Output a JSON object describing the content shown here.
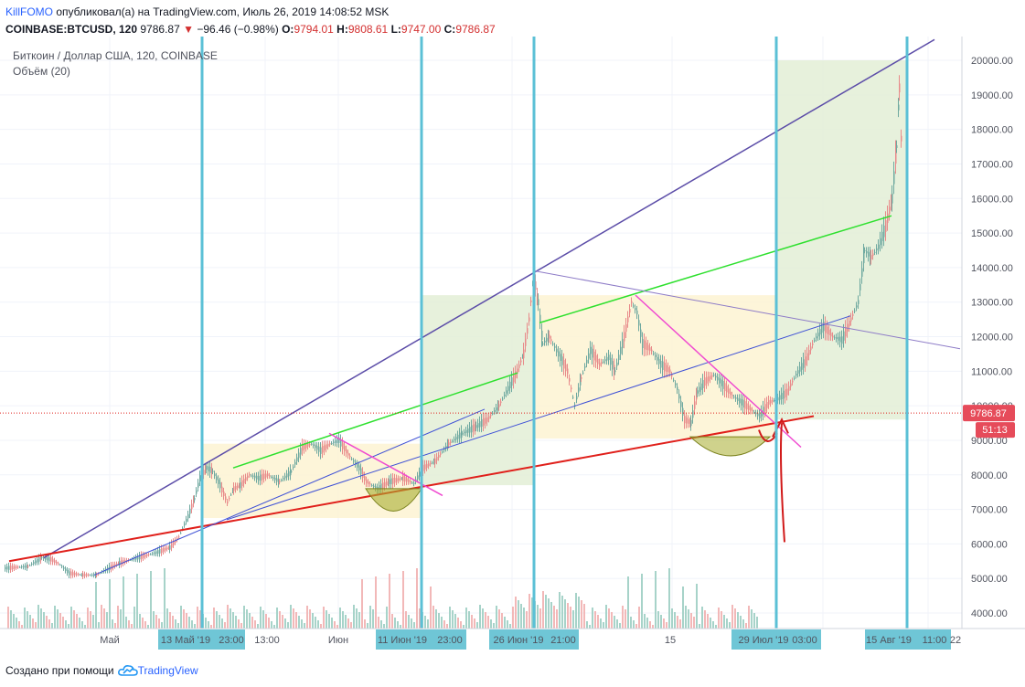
{
  "header": {
    "author": "KillFOMO",
    "published_text": "опубликовал(а) на TradingView.com, Июль 26, 2019 14:08:52 MSK",
    "symbol": "COINBASE:BTCUSD, 120",
    "last": "9786.87",
    "change_arrow": "▼",
    "change": "−96.46 (−0.98%)",
    "o_label": "O:",
    "o": "9794.01",
    "h_label": "H:",
    "h": "9808.61",
    "l_label": "L:",
    "l": "9747.00",
    "c_label": "C:",
    "c": "9786.87"
  },
  "legend": {
    "title": "Биткоин / Доллар США, 120, COINBASE",
    "volume": "Объём (20)"
  },
  "footer": {
    "created_with": "Создано при помощи",
    "brand": "TradingView",
    "logo_icon": "tradingview-cloud-icon"
  },
  "chart_data": {
    "type": "candlestick",
    "title": "Биткоин / Доллар США, 120, COINBASE",
    "volume_label": "Объём (20)",
    "ylim": [
      3500,
      20600
    ],
    "y_ticks": [
      4000,
      5000,
      6000,
      7000,
      8000,
      9000,
      10000,
      11000,
      12000,
      13000,
      14000,
      15000,
      16000,
      17000,
      18000,
      19000,
      20000
    ],
    "y_tick_labels": [
      "4000.00",
      "5000.00",
      "6000.00",
      "7000.00",
      "8000.00",
      "9000.00",
      "10000.00",
      "11000.00",
      "12000.00",
      "13000.00",
      "14000.00",
      "15000.00",
      "16000.00",
      "17000.00",
      "18000.00",
      "19000.00",
      "20000.00"
    ],
    "x_ticks": [
      {
        "label": "Май",
        "highlight": false
      },
      {
        "label": "13 Май '19",
        "highlight": true
      },
      {
        "label": "23:00",
        "highlight": true
      },
      {
        "label": "13:00",
        "highlight": false
      },
      {
        "label": "Июн",
        "highlight": false
      },
      {
        "label": "11 Июн '19",
        "highlight": true
      },
      {
        "label": "23:00",
        "highlight": true
      },
      {
        "label": "26 Июн '19",
        "highlight": true
      },
      {
        "label": "21:00",
        "highlight": true
      },
      {
        "label": "15",
        "highlight": false
      },
      {
        "label": "29 Июл '19",
        "highlight": true
      },
      {
        "label": "03:00",
        "highlight": true
      },
      {
        "label": "15 Авг '19",
        "highlight": true
      },
      {
        "label": "11:00",
        "highlight": true
      },
      {
        "label": "22",
        "highlight": false
      }
    ],
    "last_price": 9786.87,
    "last_price_label": "9786.87",
    "countdown_label": "51:13",
    "price_path": [
      [
        5,
        5300
      ],
      [
        30,
        5350
      ],
      [
        45,
        5600
      ],
      [
        55,
        5550
      ],
      [
        65,
        5400
      ],
      [
        75,
        5150
      ],
      [
        90,
        5100
      ],
      [
        105,
        5100
      ],
      [
        115,
        5250
      ],
      [
        130,
        5450
      ],
      [
        150,
        5600
      ],
      [
        170,
        5750
      ],
      [
        185,
        5900
      ],
      [
        195,
        6200
      ],
      [
        205,
        6800
      ],
      [
        212,
        7300
      ],
      [
        218,
        7900
      ],
      [
        225,
        8200
      ],
      [
        232,
        8100
      ],
      [
        240,
        7700
      ],
      [
        248,
        7200
      ],
      [
        255,
        7600
      ],
      [
        262,
        7700
      ],
      [
        272,
        8000
      ],
      [
        282,
        7900
      ],
      [
        292,
        8000
      ],
      [
        305,
        7800
      ],
      [
        318,
        8100
      ],
      [
        330,
        8800
      ],
      [
        340,
        8900
      ],
      [
        350,
        8700
      ],
      [
        360,
        8900
      ],
      [
        370,
        9000
      ],
      [
        380,
        8600
      ],
      [
        392,
        8200
      ],
      [
        400,
        7800
      ],
      [
        412,
        7600
      ],
      [
        425,
        7800
      ],
      [
        440,
        7900
      ],
      [
        452,
        7750
      ],
      [
        462,
        8200
      ],
      [
        475,
        8400
      ],
      [
        490,
        8900
      ],
      [
        505,
        9200
      ],
      [
        520,
        9400
      ],
      [
        532,
        9600
      ],
      [
        545,
        10000
      ],
      [
        555,
        10500
      ],
      [
        565,
        11000
      ],
      [
        572,
        11500
      ],
      [
        578,
        12500
      ],
      [
        583,
        13800
      ],
      [
        588,
        13000
      ],
      [
        593,
        11800
      ],
      [
        600,
        12000
      ],
      [
        610,
        11500
      ],
      [
        620,
        11000
      ],
      [
        628,
        10000
      ],
      [
        635,
        10800
      ],
      [
        645,
        11600
      ],
      [
        655,
        11200
      ],
      [
        665,
        11400
      ],
      [
        672,
        11000
      ],
      [
        682,
        12000
      ],
      [
        690,
        13000
      ],
      [
        696,
        12700
      ],
      [
        702,
        11800
      ],
      [
        712,
        11600
      ],
      [
        722,
        11200
      ],
      [
        732,
        11000
      ],
      [
        740,
        10500
      ],
      [
        748,
        9600
      ],
      [
        755,
        9500
      ],
      [
        762,
        10400
      ],
      [
        770,
        10700
      ],
      [
        780,
        10900
      ],
      [
        790,
        10600
      ],
      [
        800,
        10300
      ],
      [
        810,
        10100
      ],
      [
        820,
        9900
      ],
      [
        830,
        9700
      ],
      [
        840,
        10100
      ],
      [
        850,
        10200
      ],
      [
        860,
        10400
      ],
      [
        870,
        10900
      ],
      [
        880,
        11300
      ],
      [
        890,
        11900
      ],
      [
        900,
        12300
      ],
      [
        910,
        12000
      ],
      [
        920,
        11900
      ],
      [
        930,
        12500
      ],
      [
        938,
        13000
      ],
      [
        945,
        14500
      ],
      [
        952,
        14300
      ],
      [
        960,
        14600
      ],
      [
        968,
        15200
      ],
      [
        975,
        16000
      ],
      [
        980,
        17500
      ],
      [
        983,
        19200
      ],
      [
        986,
        17000
      ]
    ],
    "volume_label_mark": "volume bars (unscaled)"
  }
}
